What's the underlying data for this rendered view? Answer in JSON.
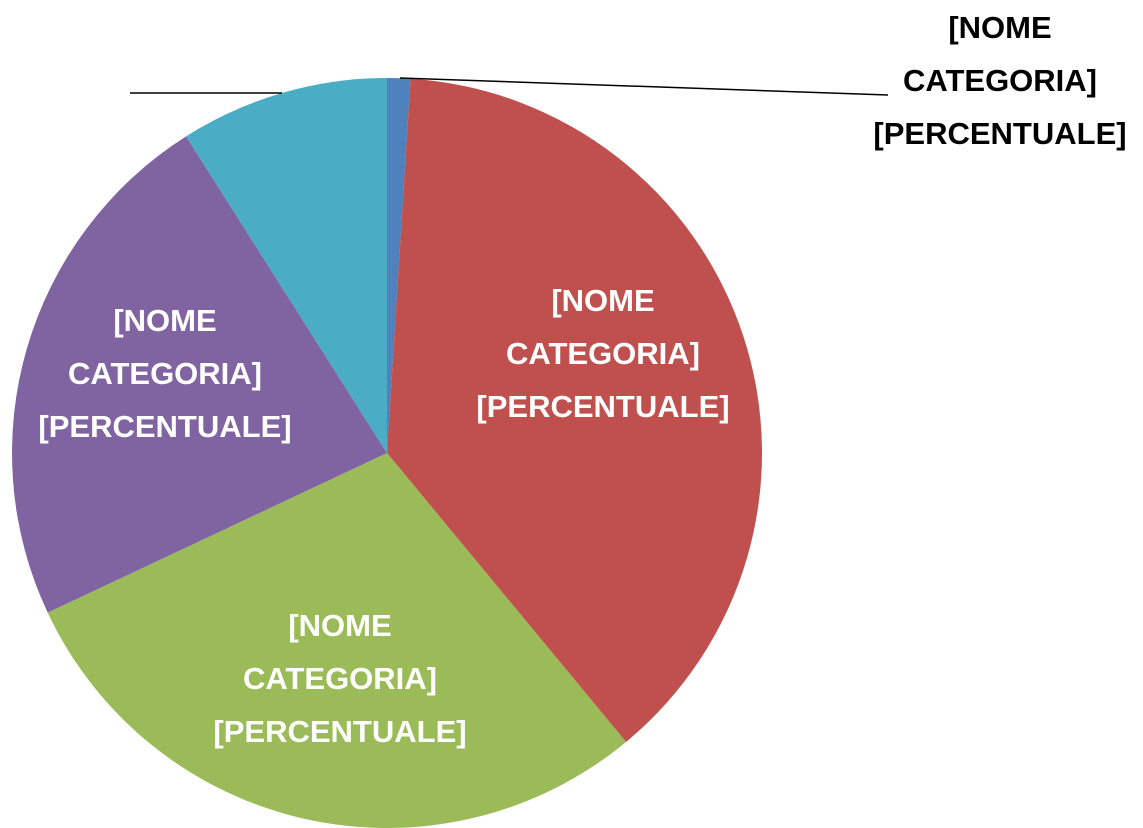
{
  "chart_data": {
    "type": "pie",
    "values": [
      1,
      38,
      29,
      23,
      9
    ],
    "colors": [
      "#4f81bd",
      "#c0504d",
      "#9bbb59",
      "#8064a2",
      "#4bacc6"
    ],
    "labels": [
      [
        "[NOME",
        "CATEGORIA]",
        "[PERCENTUALE]"
      ],
      [
        "[NOME",
        "CATEGORIA]",
        "[PERCENTUALE]"
      ],
      [
        "[NOME",
        "CATEGORIA]",
        "[PERCENTUALE]"
      ],
      [
        "[NOME",
        "CATEGORIA]",
        "[PERCENTUALE]"
      ],
      null
    ]
  }
}
